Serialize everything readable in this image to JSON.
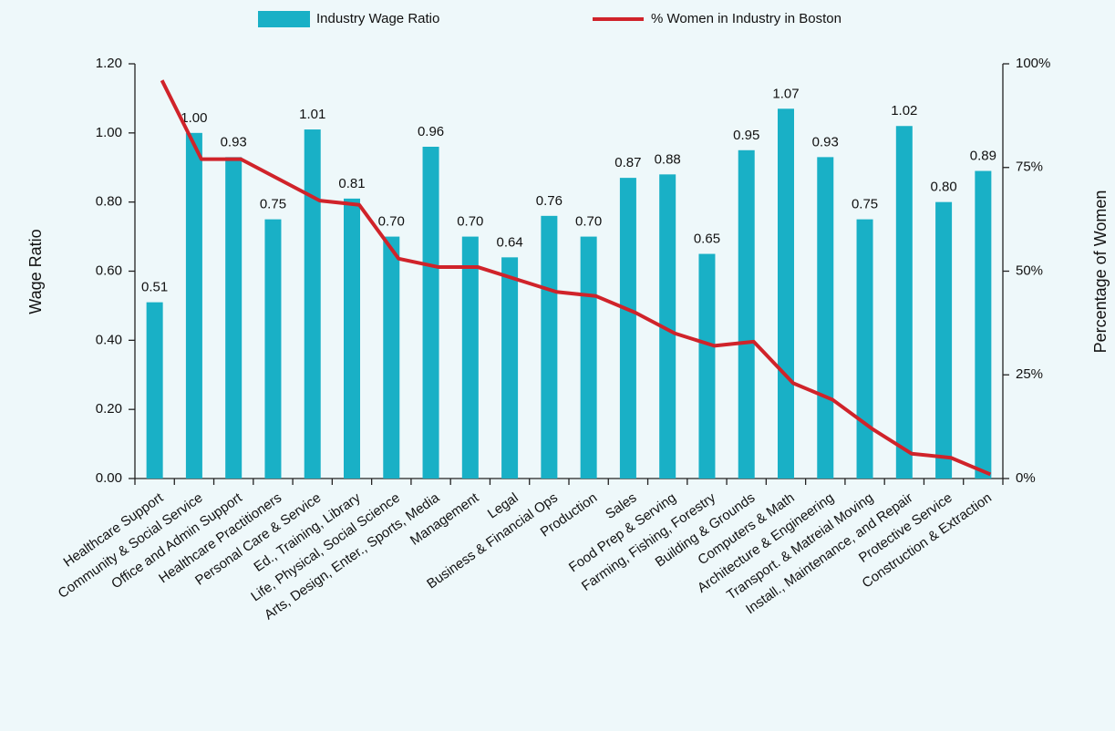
{
  "chart_data": {
    "type": "bar",
    "categories": [
      "Healthcare Support",
      "Community & Social Service",
      "Office and Admin Support",
      "Healthcare Practitioners",
      "Personal Care & Service",
      "Ed., Training, Library",
      "Life, Physical, Social Science",
      "Arts, Design, Enter., Sports, Media",
      "Management",
      "Legal",
      "Business & Financial Ops",
      "Production",
      "Sales",
      "Food Prep & Serving",
      "Farming, Fishing, Forestry",
      "Building & Grounds",
      "Computers & Math",
      "Architecture & Engineering",
      "Transport. & Matreial Moving",
      "Install., Maintenance, and Repair",
      "Protective Service",
      "Construction & Extraction"
    ],
    "series": [
      {
        "name": "Industry Wage Ratio",
        "type": "bar",
        "color": "#19b0c6",
        "values": [
          0.51,
          1.0,
          0.93,
          0.75,
          1.01,
          0.81,
          0.7,
          0.96,
          0.7,
          0.64,
          0.76,
          0.7,
          0.87,
          0.88,
          0.65,
          0.95,
          1.07,
          0.93,
          0.75,
          1.02,
          0.8,
          0.89
        ],
        "value_labels": [
          "0.51",
          "1.00",
          "0.93",
          "0.75",
          "1.01",
          "0.81",
          "0.70",
          "0.96",
          "0.70",
          "0.64",
          "0.76",
          "0.70",
          "0.87",
          "0.88",
          "0.65",
          "0.95",
          "1.07",
          "0.93",
          "0.75",
          "1.02",
          "0.80",
          "0.89"
        ]
      },
      {
        "name": "% Women in Industry in Boston",
        "type": "line",
        "axis": "y2",
        "color": "#d0232a",
        "values": [
          96,
          77,
          77,
          72,
          67,
          66,
          53,
          51,
          51,
          48,
          45,
          44,
          40,
          35,
          32,
          33,
          23,
          19,
          12,
          6,
          5,
          1
        ]
      }
    ],
    "ylabel": "Wage Ratio",
    "y2label": "Percentage of Women",
    "ylim": [
      0,
      1.2
    ],
    "yticks": [
      {
        "value": 0,
        "label": "0.00"
      },
      {
        "value": 0.2,
        "label": "0.20"
      },
      {
        "value": 0.4,
        "label": "0.40"
      },
      {
        "value": 0.6,
        "label": "0.60"
      },
      {
        "value": 0.8,
        "label": "0.80"
      },
      {
        "value": 1.0,
        "label": "1.00"
      },
      {
        "value": 1.2,
        "label": "1.20"
      }
    ],
    "y2lim": [
      0,
      100
    ],
    "y2ticks": [
      {
        "value": 0,
        "label": "0%"
      },
      {
        "value": 25,
        "label": "25%"
      },
      {
        "value": 50,
        "label": "50%"
      },
      {
        "value": 75,
        "label": "75%"
      },
      {
        "value": 100,
        "label": "100%"
      }
    ],
    "legend": "top",
    "grid": false
  }
}
